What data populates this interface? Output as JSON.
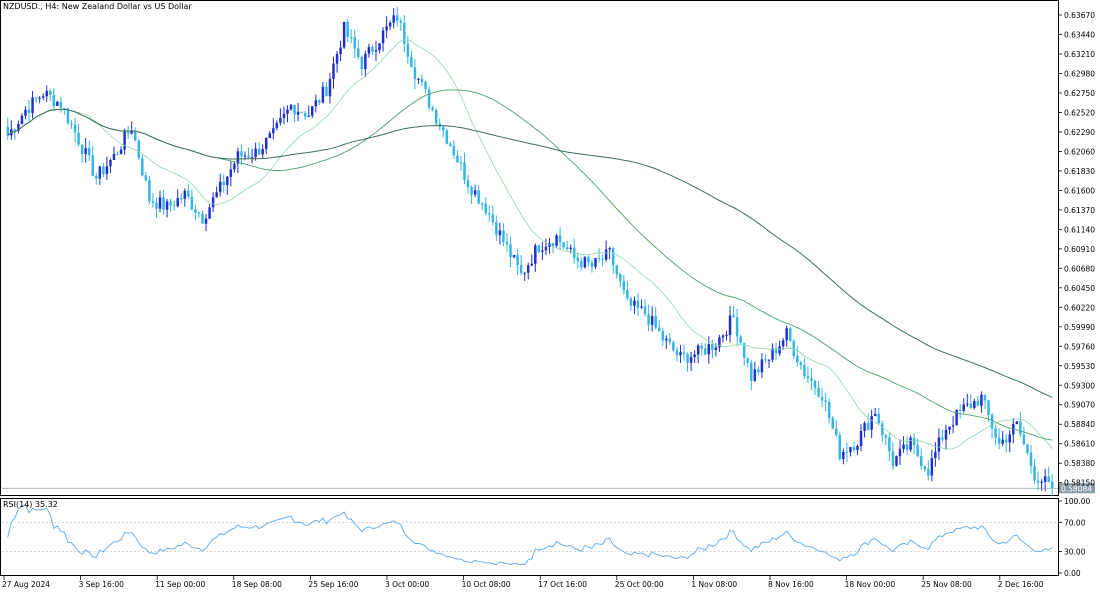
{
  "header": {
    "symbol": "NZDUSD.",
    "timeframe": "H4",
    "description": "New Zealand Dollar vs US Dollar"
  },
  "rsi_panel": {
    "label": "RSI(14)",
    "value": "35.32",
    "y_ticks": [
      "100.00",
      "70.00",
      "30.00",
      "0.00"
    ],
    "levels": [
      70,
      30
    ]
  },
  "current_price_label": "0.58084",
  "colors": {
    "bull_candle": "#1f2fd1",
    "bear_candle": "#33b5e5",
    "ma_fast": "#8fd6a6",
    "ma_mid": "#4e9f6c",
    "ma_slow": "#3f6f55",
    "rsi_line": "#5aa9e6",
    "grid_frame": "#000000"
  },
  "chart_data": [
    {
      "type": "candlestick",
      "title": "NZDUSD., H4:  New Zealand Dollar vs US Dollar",
      "ylim": [
        0.5804,
        0.638
      ],
      "y_ticks": [
        "0.63670",
        "0.63440",
        "0.63210",
        "0.62980",
        "0.62750",
        "0.62520",
        "0.62290",
        "0.62060",
        "0.61830",
        "0.61600",
        "0.61370",
        "0.61140",
        "0.60910",
        "0.60680",
        "0.60450",
        "0.60220",
        "0.59990",
        "0.59760",
        "0.59530",
        "0.59300",
        "0.59070",
        "0.58840",
        "0.58610",
        "0.58380",
        "0.58150"
      ],
      "x_ticks": [
        "27 Aug 2024",
        "3 Sep 16:00",
        "11 Sep 00:00",
        "18 Sep 08:00",
        "25 Sep 16:00",
        "3 Oct 00:00",
        "10 Oct 08:00",
        "17 Oct 16:00",
        "25 Oct 00:00",
        "1 Nov 08:00",
        "8 Nov 16:00",
        "18 Nov 00:00",
        "25 Nov 08:00",
        "2 Dec 16:00"
      ],
      "last_price": 0.58084,
      "close_anchors": [
        0.6225,
        0.6255,
        0.6275,
        0.6262,
        0.622,
        0.6175,
        0.62,
        0.6235,
        0.615,
        0.614,
        0.6155,
        0.6128,
        0.6162,
        0.62,
        0.6205,
        0.6225,
        0.626,
        0.625,
        0.628,
        0.635,
        0.631,
        0.634,
        0.6365,
        0.63,
        0.6255,
        0.6215,
        0.617,
        0.614,
        0.61,
        0.606,
        0.6095,
        0.6105,
        0.608,
        0.607,
        0.6085,
        0.6025,
        0.6015,
        0.5985,
        0.5962,
        0.5968,
        0.598,
        0.601,
        0.594,
        0.5962,
        0.599,
        0.5945,
        0.592,
        0.585,
        0.5865,
        0.59,
        0.584,
        0.586,
        0.583,
        0.588,
        0.5902,
        0.5915,
        0.586,
        0.5883,
        0.5825,
        0.5808
      ]
    },
    {
      "type": "line",
      "title": "RSI(14) 35.32",
      "ylim": [
        0,
        100
      ],
      "levels": [
        70,
        30
      ],
      "last_value": 35.32
    }
  ]
}
